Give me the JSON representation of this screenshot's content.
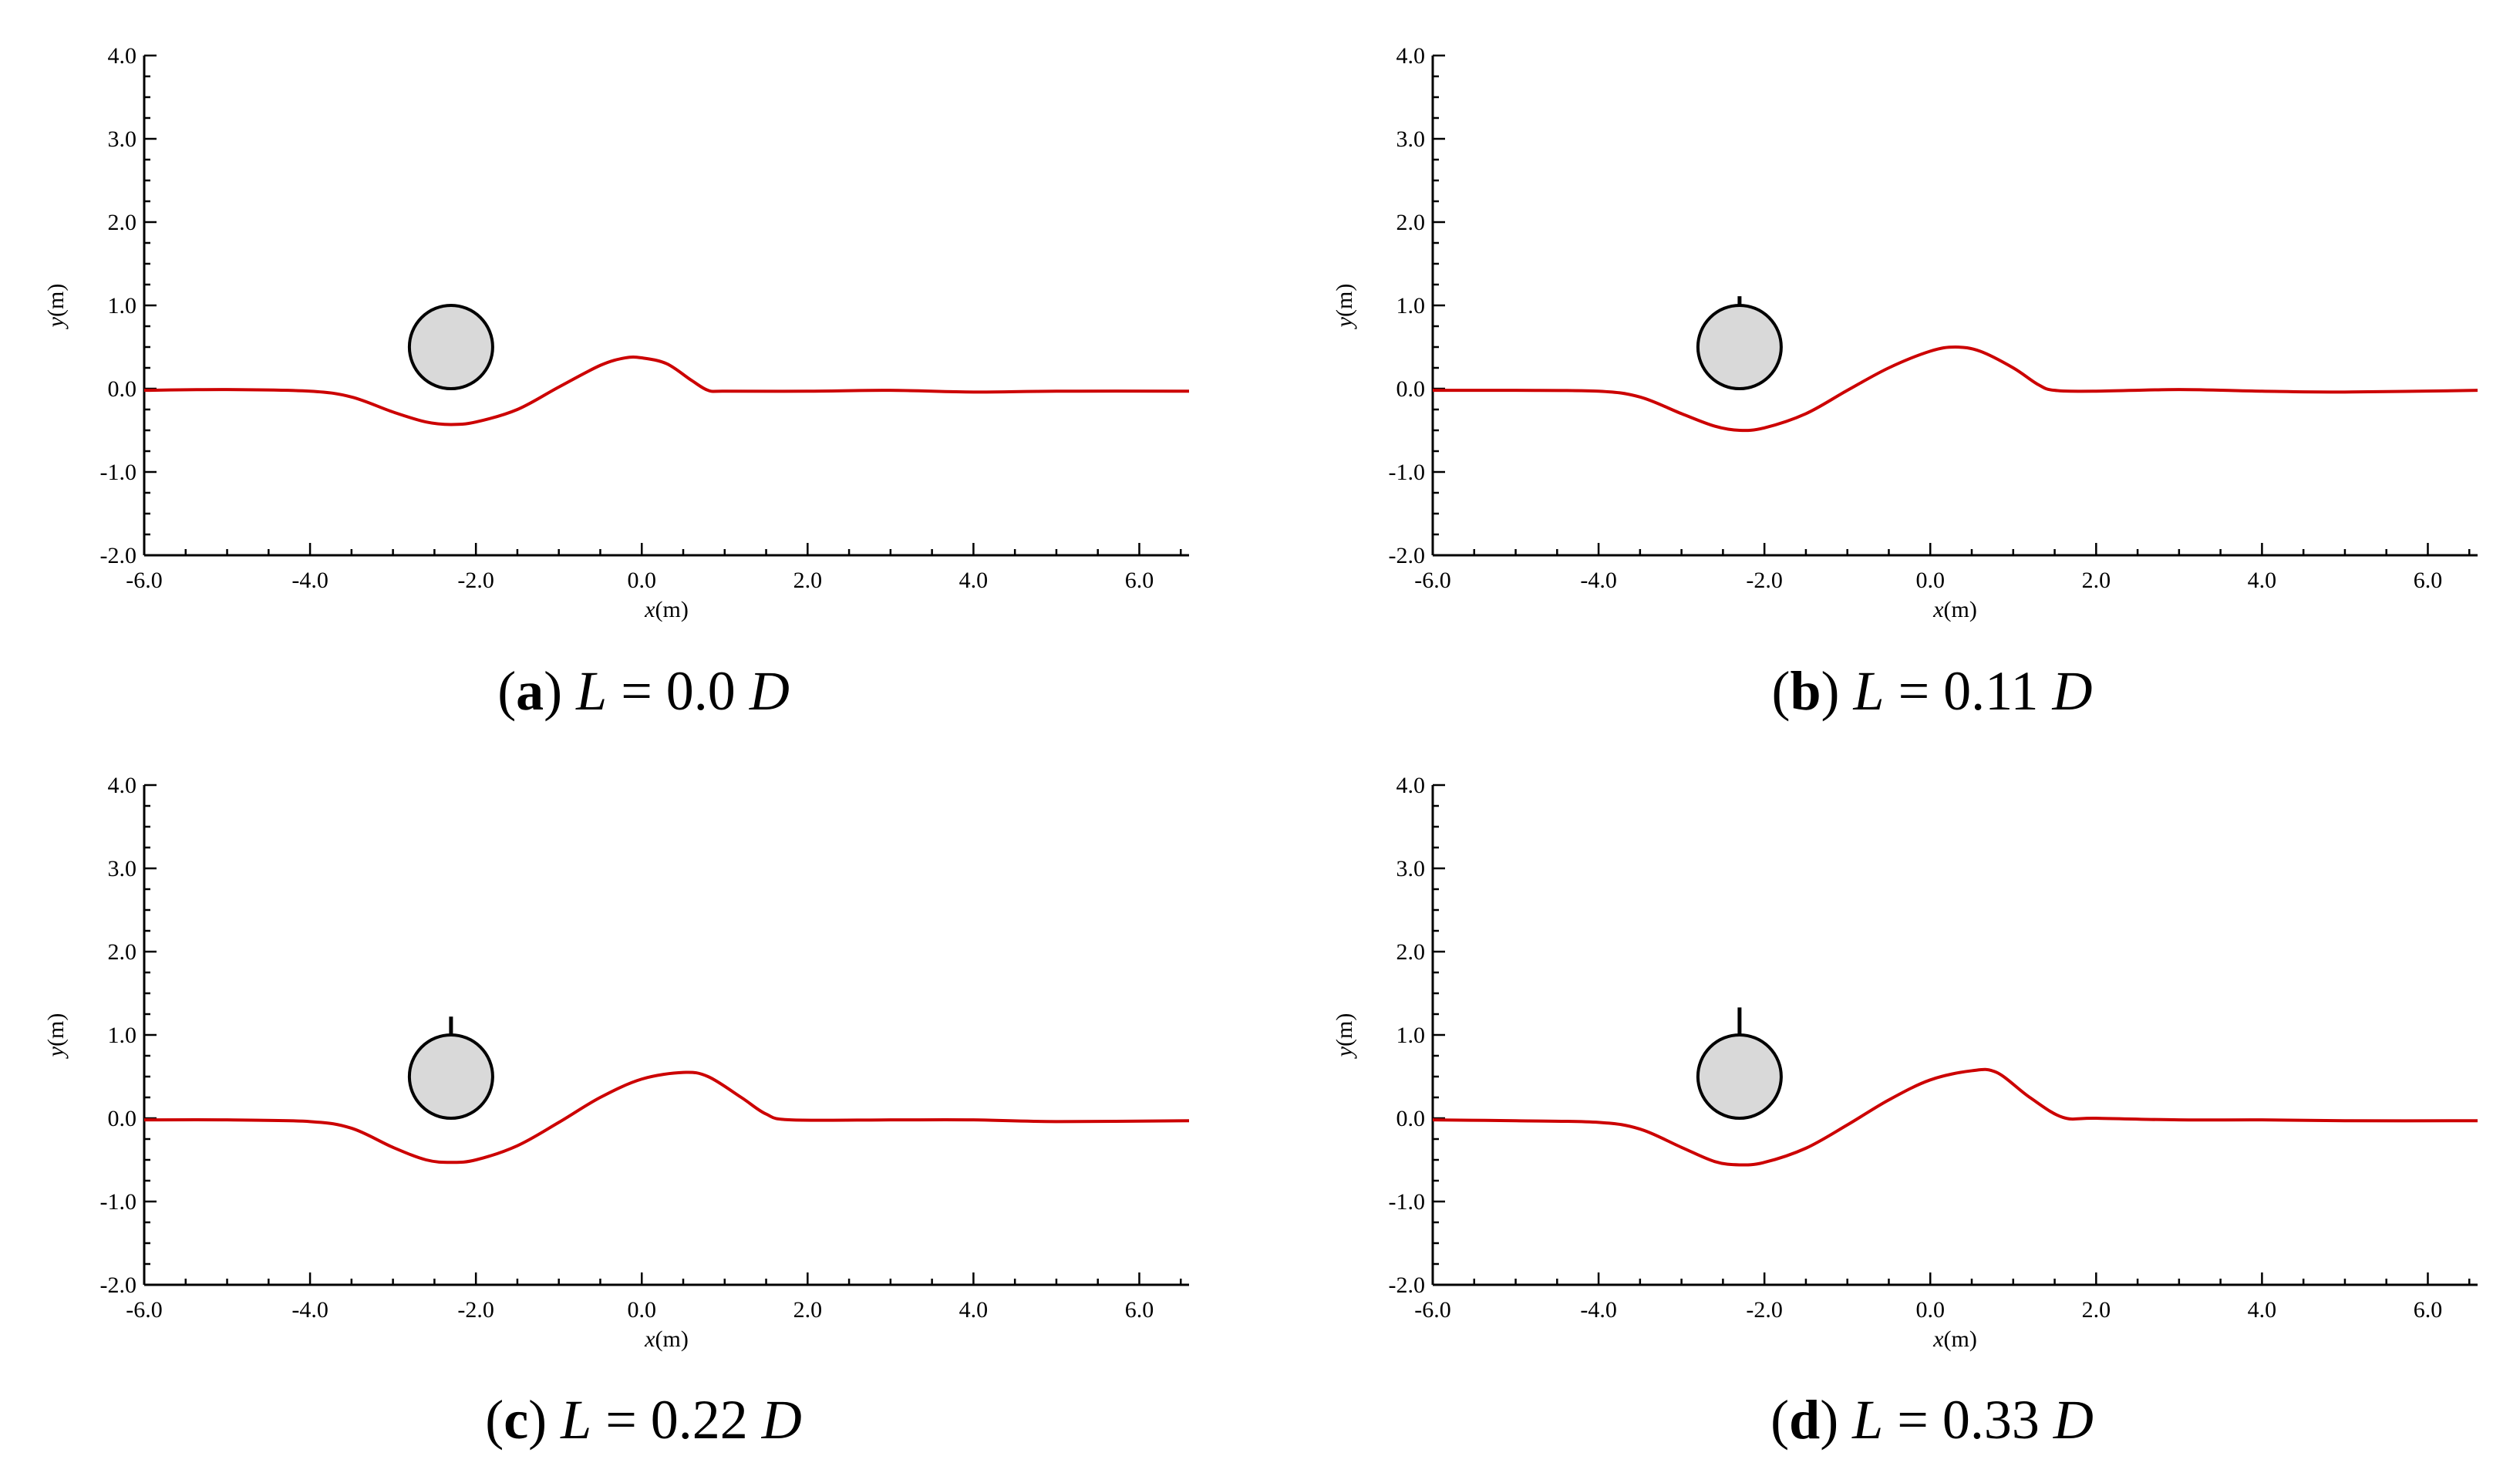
{
  "chart_data": [
    {
      "type": "line",
      "panel_label": "a",
      "caption": {
        "open": "(",
        "label": "a",
        "close": ")",
        "var": "L",
        "eq": " = 0.0 ",
        "unit": "D"
      },
      "xlabel": {
        "var": "x",
        "unit": "(m)"
      },
      "ylabel": {
        "var": "y",
        "unit": "(m)"
      },
      "xlim": [
        -6.0,
        6.6
      ],
      "ylim": [
        -2.0,
        4.0
      ],
      "xticks": [
        "-6.0",
        "-4.0",
        "-2.0",
        "0.0",
        "2.0",
        "4.0",
        "6.0"
      ],
      "yticks": [
        "-2.0",
        "-1.0",
        "0.0",
        "1.0",
        "2.0",
        "3.0",
        "4.0"
      ],
      "cylinder": {
        "center": [
          -2.3,
          0.5
        ],
        "radius": 0.5,
        "fill": "#d9d9d9",
        "plate_length": 0.0
      },
      "series": [
        {
          "name": "free-surface",
          "color": "#cc0000",
          "x": [
            -6.0,
            -5.0,
            -4.0,
            -3.5,
            -3.0,
            -2.6,
            -2.3,
            -2.0,
            -1.5,
            -1.0,
            -0.5,
            -0.2,
            0.0,
            0.3,
            0.6,
            0.8,
            1.0,
            2.0,
            3.0,
            4.0,
            5.0,
            6.6
          ],
          "y": [
            -0.02,
            -0.01,
            -0.03,
            -0.1,
            -0.28,
            -0.4,
            -0.43,
            -0.4,
            -0.25,
            0.02,
            0.28,
            0.37,
            0.37,
            0.3,
            0.1,
            -0.02,
            -0.03,
            -0.03,
            -0.02,
            -0.04,
            -0.03,
            -0.03
          ]
        }
      ]
    },
    {
      "type": "line",
      "panel_label": "b",
      "caption": {
        "open": "(",
        "label": "b",
        "close": ")",
        "var": "L",
        "eq": " = 0.11 ",
        "unit": "D"
      },
      "xlabel": {
        "var": "x",
        "unit": "(m)"
      },
      "ylabel": {
        "var": "y",
        "unit": "(m)"
      },
      "xlim": [
        -6.0,
        6.6
      ],
      "ylim": [
        -2.0,
        4.0
      ],
      "xticks": [
        "-6.0",
        "-4.0",
        "-2.0",
        "0.0",
        "2.0",
        "4.0",
        "6.0"
      ],
      "yticks": [
        "-2.0",
        "-1.0",
        "0.0",
        "1.0",
        "2.0",
        "3.0",
        "4.0"
      ],
      "cylinder": {
        "center": [
          -2.3,
          0.5
        ],
        "radius": 0.5,
        "fill": "#d9d9d9",
        "plate_length": 0.11
      },
      "series": [
        {
          "name": "free-surface",
          "color": "#cc0000",
          "x": [
            -6.0,
            -5.0,
            -4.0,
            -3.5,
            -3.0,
            -2.6,
            -2.3,
            -2.0,
            -1.5,
            -1.0,
            -0.5,
            0.0,
            0.3,
            0.6,
            1.0,
            1.3,
            1.5,
            2.0,
            3.0,
            4.0,
            5.0,
            6.6
          ],
          "y": [
            -0.02,
            -0.02,
            -0.03,
            -0.1,
            -0.3,
            -0.45,
            -0.5,
            -0.47,
            -0.3,
            -0.02,
            0.25,
            0.45,
            0.5,
            0.45,
            0.25,
            0.05,
            -0.02,
            -0.03,
            -0.01,
            -0.03,
            -0.04,
            -0.02
          ]
        }
      ]
    },
    {
      "type": "line",
      "panel_label": "c",
      "caption": {
        "open": "(",
        "label": "c",
        "close": ")",
        "var": "L",
        "eq": " = 0.22 ",
        "unit": "D"
      },
      "xlabel": {
        "var": "x",
        "unit": "(m)"
      },
      "ylabel": {
        "var": "y",
        "unit": "(m)"
      },
      "xlim": [
        -6.0,
        6.6
      ],
      "ylim": [
        -2.0,
        4.0
      ],
      "xticks": [
        "-6.0",
        "-4.0",
        "-2.0",
        "0.0",
        "2.0",
        "4.0",
        "6.0"
      ],
      "yticks": [
        "-2.0",
        "-1.0",
        "0.0",
        "1.0",
        "2.0",
        "3.0",
        "4.0"
      ],
      "cylinder": {
        "center": [
          -2.3,
          0.5
        ],
        "radius": 0.5,
        "fill": "#d9d9d9",
        "plate_length": 0.22
      },
      "series": [
        {
          "name": "free-surface",
          "color": "#cc0000",
          "x": [
            -6.0,
            -5.0,
            -4.0,
            -3.5,
            -3.0,
            -2.6,
            -2.3,
            -2.0,
            -1.5,
            -1.0,
            -0.5,
            0.0,
            0.5,
            0.8,
            1.2,
            1.5,
            1.8,
            3.0,
            4.0,
            5.0,
            6.6
          ],
          "y": [
            -0.02,
            -0.02,
            -0.04,
            -0.12,
            -0.35,
            -0.5,
            -0.53,
            -0.5,
            -0.33,
            -0.05,
            0.25,
            0.47,
            0.55,
            0.5,
            0.25,
            0.05,
            -0.02,
            -0.02,
            -0.02,
            -0.04,
            -0.03
          ]
        }
      ]
    },
    {
      "type": "line",
      "panel_label": "d",
      "caption": {
        "open": "(",
        "label": "d",
        "close": ")",
        "var": "L",
        "eq": " = 0.33 ",
        "unit": "D"
      },
      "xlabel": {
        "var": "x",
        "unit": "(m)"
      },
      "ylabel": {
        "var": "y",
        "unit": "(m)"
      },
      "xlim": [
        -6.0,
        6.6
      ],
      "ylim": [
        -2.0,
        4.0
      ],
      "xticks": [
        "-6.0",
        "-4.0",
        "-2.0",
        "0.0",
        "2.0",
        "4.0",
        "6.0"
      ],
      "yticks": [
        "-2.0",
        "-1.0",
        "0.0",
        "1.0",
        "2.0",
        "3.0",
        "4.0"
      ],
      "cylinder": {
        "center": [
          -2.3,
          0.5
        ],
        "radius": 0.5,
        "fill": "#d9d9d9",
        "plate_length": 0.33
      },
      "series": [
        {
          "name": "free-surface",
          "color": "#cc0000",
          "x": [
            -6.0,
            -5.0,
            -4.0,
            -3.5,
            -3.0,
            -2.6,
            -2.3,
            -2.0,
            -1.5,
            -1.0,
            -0.5,
            0.0,
            0.5,
            0.8,
            1.2,
            1.6,
            2.0,
            3.0,
            4.0,
            5.0,
            6.6
          ],
          "y": [
            -0.02,
            -0.03,
            -0.05,
            -0.13,
            -0.35,
            -0.52,
            -0.56,
            -0.53,
            -0.36,
            -0.08,
            0.22,
            0.46,
            0.57,
            0.55,
            0.25,
            0.01,
            0.0,
            -0.02,
            -0.02,
            -0.03,
            -0.03
          ]
        }
      ]
    }
  ]
}
